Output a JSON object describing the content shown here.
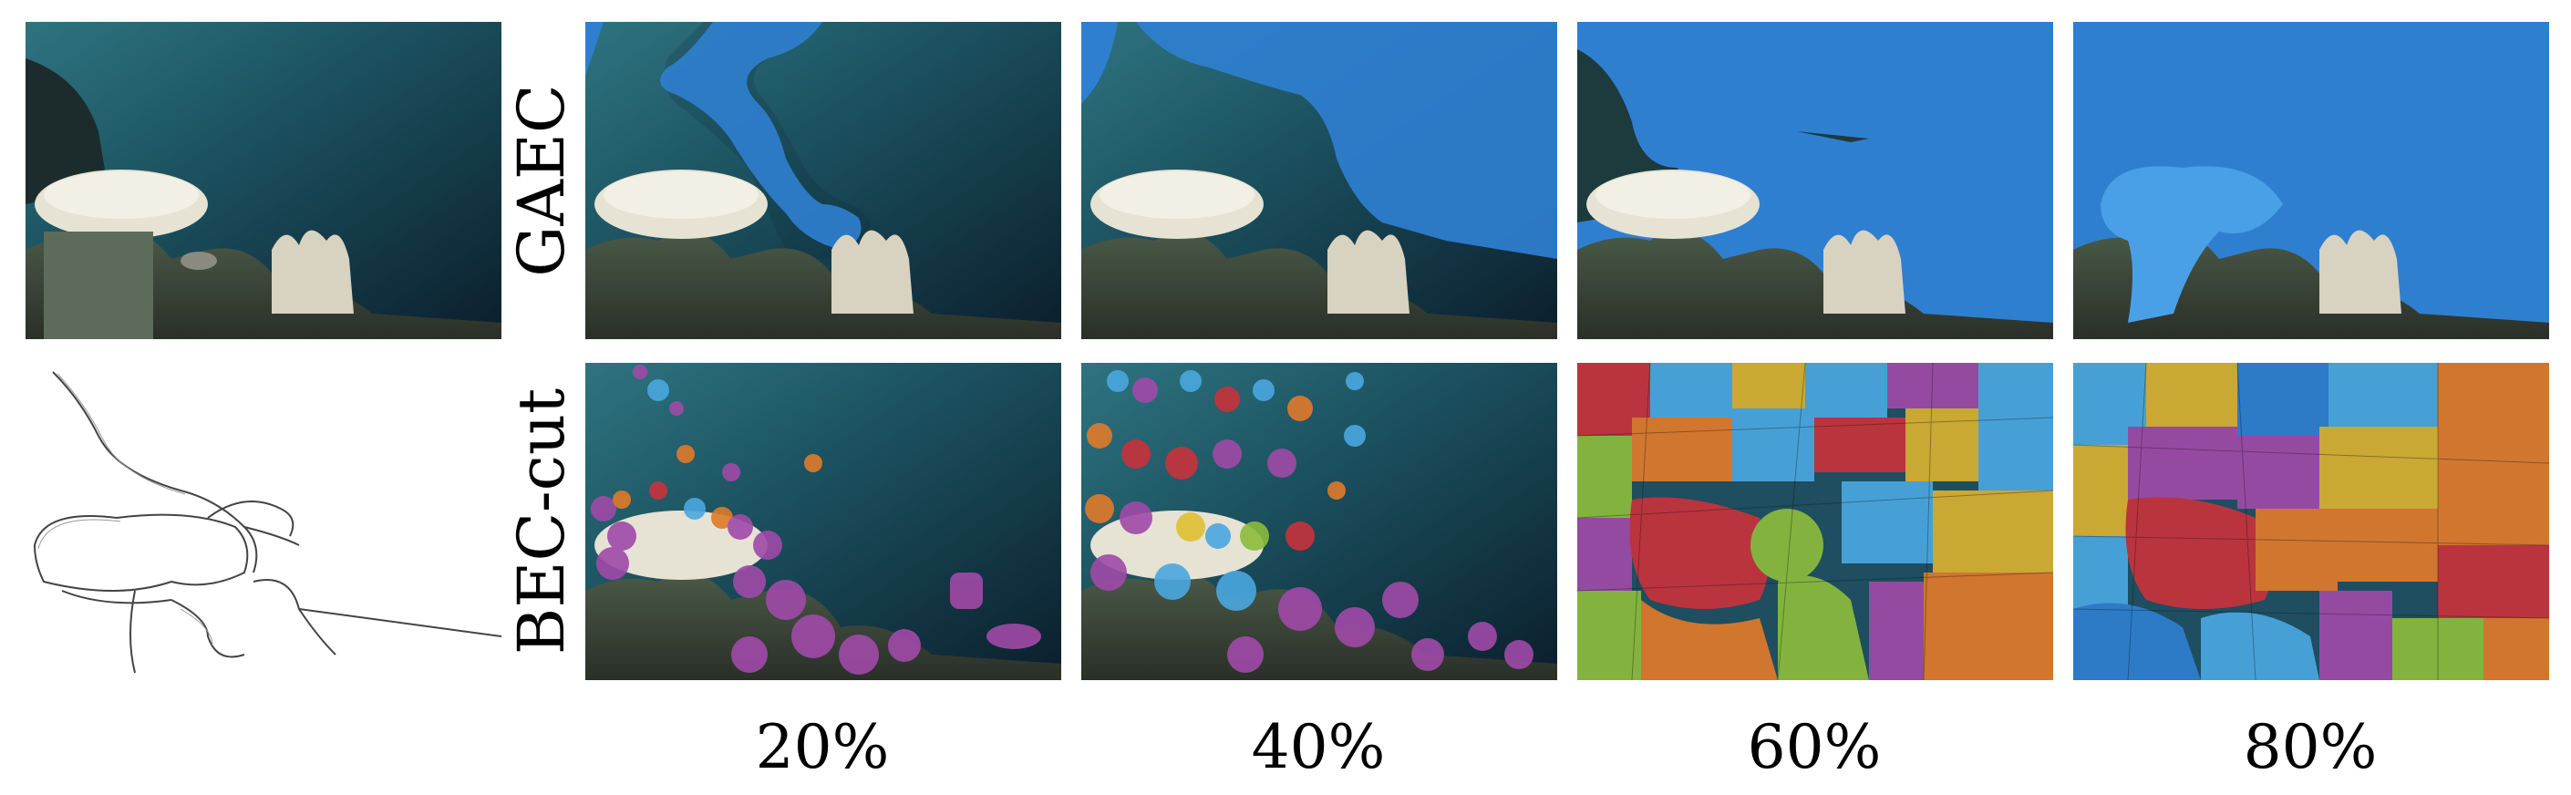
{
  "figure": {
    "row_labels": [
      "GAEC",
      "BEC-cut"
    ],
    "column_labels": [
      "20%",
      "40%",
      "60%",
      "80%"
    ]
  },
  "panels": {
    "input": "original-photo",
    "edges": "edge-probability-map",
    "gaec": [
      "gaec-20",
      "gaec-40",
      "gaec-60",
      "gaec-80"
    ],
    "bec": [
      "bec-20",
      "bec-40",
      "bec-60",
      "bec-80"
    ]
  },
  "colors": {
    "segment_blue": "#2f7fd0",
    "water_deep": "#0e2a3a",
    "water_light": "#2e6f7d",
    "coral_white": "#e8e4d8",
    "purple": "#a04aa8",
    "red": "#c8323c",
    "orange": "#e07a2a",
    "green": "#8cbc3c",
    "yellow": "#d8b030",
    "lightblue": "#4aa8e0"
  }
}
